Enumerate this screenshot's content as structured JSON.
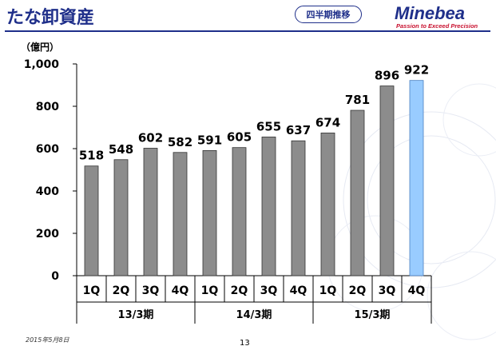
{
  "header": {
    "title": "たな卸資産",
    "badge": "四半期推移",
    "logo_name": "Minebea",
    "logo_tagline": "Passion to Exceed Precision"
  },
  "footer": {
    "date": "2015年5月8日",
    "page_number": "13"
  },
  "chart_data": {
    "type": "bar",
    "title": "たな卸資産",
    "ylabel": "（億円）",
    "xlabel": "",
    "ylim": [
      0,
      1000
    ],
    "yticks": [
      0,
      200,
      400,
      600,
      800,
      1000
    ],
    "ytick_labels": [
      "0",
      "200",
      "400",
      "600",
      "800",
      "1,000"
    ],
    "categories": [
      "1Q",
      "2Q",
      "3Q",
      "4Q",
      "1Q",
      "2Q",
      "3Q",
      "4Q",
      "1Q",
      "2Q",
      "3Q",
      "4Q"
    ],
    "values": [
      518,
      548,
      602,
      582,
      591,
      605,
      655,
      637,
      674,
      781,
      896,
      922
    ],
    "value_labels": [
      "518",
      "548",
      "602",
      "582",
      "591",
      "605",
      "655",
      "637",
      "674",
      "781",
      "896",
      "922"
    ],
    "groups": [
      {
        "label": "13/3期",
        "count": 4
      },
      {
        "label": "14/3期",
        "count": 4
      },
      {
        "label": "15/3期",
        "count": 4
      }
    ],
    "bar_color": "#8c8c8c",
    "highlight_color": "#99ccff",
    "highlight_index": 11
  }
}
